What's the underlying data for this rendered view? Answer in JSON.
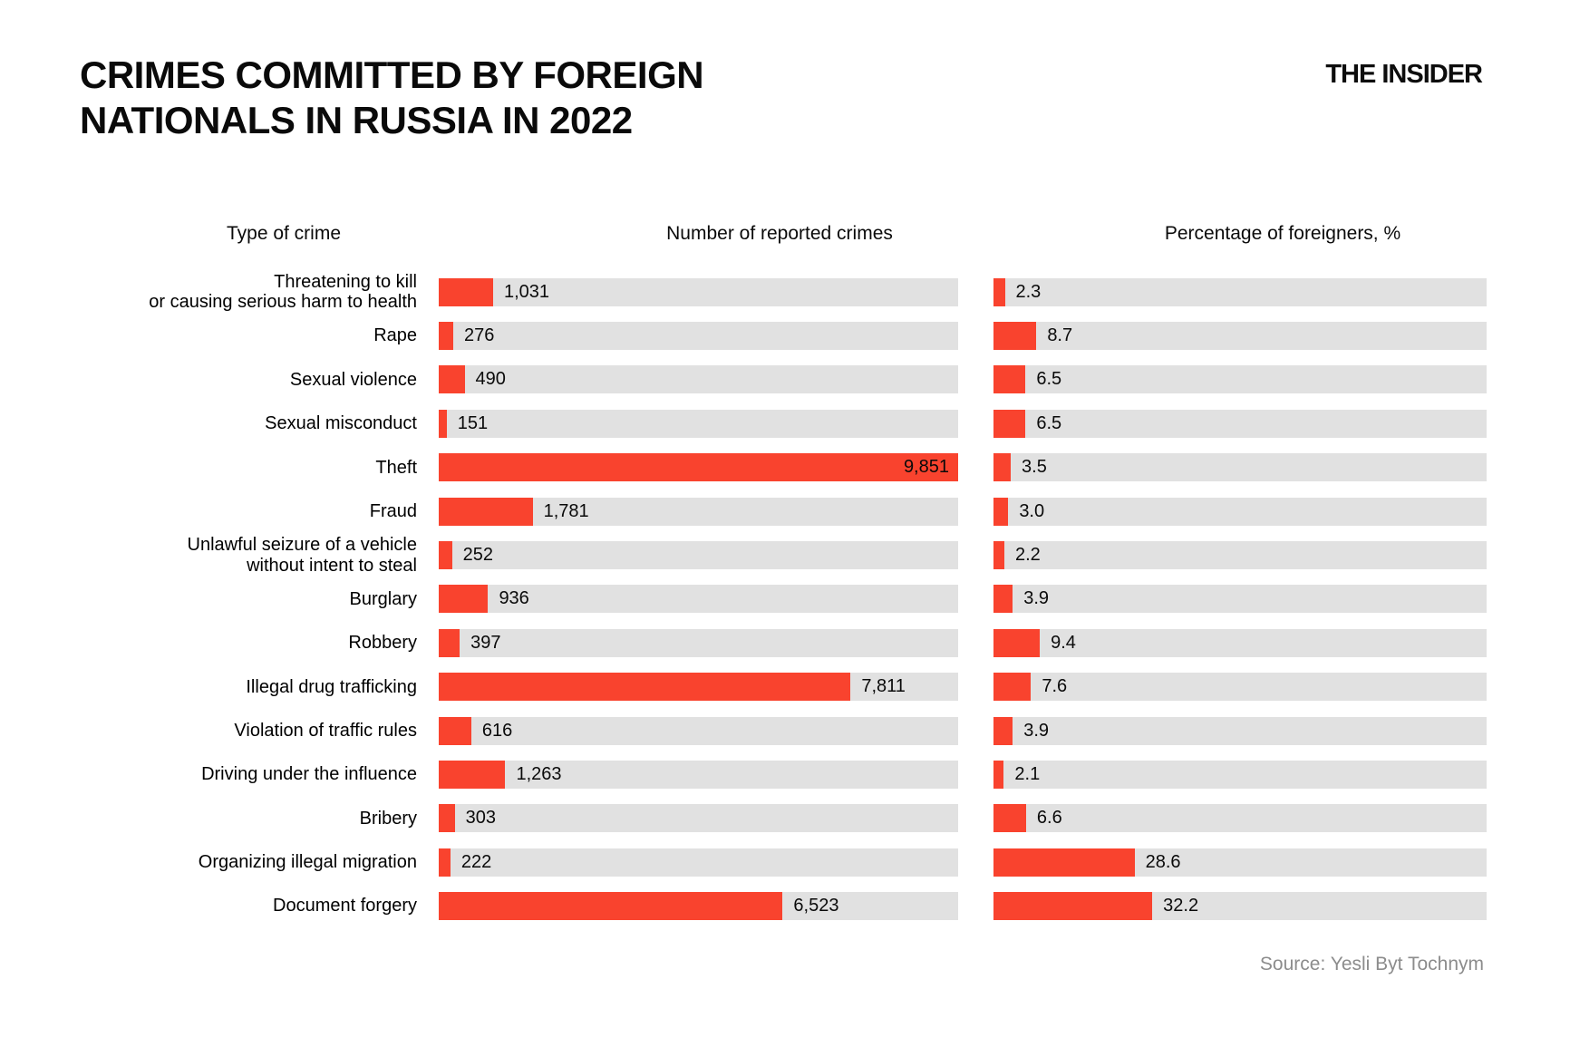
{
  "header": {
    "title_line1": "CRIMES COMMITTED BY FOREIGN",
    "title_line2": "NATIONALS IN RUSSIA IN 2022",
    "logo": "THE INSIDER"
  },
  "columns": {
    "crime": "Type of crime",
    "count": "Number of reported crimes",
    "percent": "Percentage of foreigners, %"
  },
  "source": "Source: Yesli Byt Tochnym",
  "colors": {
    "bar": "#f9432e",
    "track": "#e1e1e1",
    "source_text": "#8c8c8c"
  },
  "chart_data": {
    "type": "bar",
    "orientation": "horizontal",
    "title": "Crimes committed by foreign nationals in Russia in 2022",
    "legend_position": "none",
    "grid": false,
    "categories": [
      "Threatening to kill\nor causing serious harm to health",
      "Rape",
      "Sexual violence",
      "Sexual misconduct",
      "Theft",
      "Fraud",
      "Unlawful seizure of a vehicle\nwithout intent to steal",
      "Burglary",
      "Robbery",
      "Illegal drug trafficking",
      "Violation of traffic rules",
      "Driving under the influence",
      "Bribery",
      "Organizing illegal migration",
      "Document forgery"
    ],
    "series": [
      {
        "name": "Number of reported crimes",
        "values": [
          1031,
          276,
          490,
          151,
          9851,
          1781,
          252,
          936,
          397,
          7811,
          616,
          1263,
          303,
          222,
          6523
        ],
        "labels": [
          "1,031",
          "276",
          "490",
          "151",
          "9,851",
          "1,781",
          "252",
          "936",
          "397",
          "7,811",
          "616",
          "1,263",
          "303",
          "222",
          "6,523"
        ],
        "axis_max": 9851
      },
      {
        "name": "Percentage of foreigners, %",
        "values": [
          2.3,
          8.7,
          6.5,
          6.5,
          3.5,
          3.0,
          2.2,
          3.9,
          9.4,
          7.6,
          3.9,
          2.1,
          6.6,
          28.6,
          32.2
        ],
        "labels": [
          "2.3",
          "8.7",
          "6.5",
          "6.5",
          "3.5",
          "3.0",
          "2.2",
          "3.9",
          "9.4",
          "7.6",
          "3.9",
          "2.1",
          "6.6",
          "28.6",
          "32.2"
        ],
        "axis_max": 100
      }
    ]
  }
}
